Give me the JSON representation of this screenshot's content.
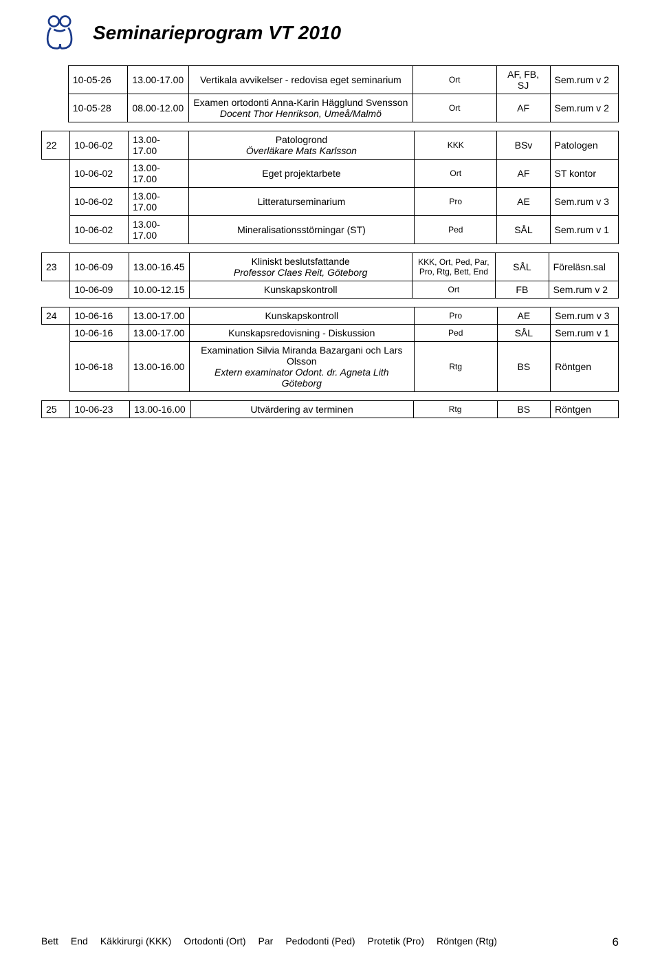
{
  "title": "Seminarieprogram VT 2010",
  "group0": [
    {
      "num": "",
      "date": "10-05-26",
      "time": "13.00-17.00",
      "desc": "Vertikala avvikelser - redovisa eget seminarium",
      "c1": "Ort",
      "c2": "AF, FB, SJ",
      "c3": "Sem.rum v 2"
    },
    {
      "num": "",
      "date": "10-05-28",
      "time": "08.00-12.00",
      "desc": "Examen ortodonti Anna-Karin Hägglund Svensson\n<span class='italic'>Docent Thor Henrikson, Umeå/Malmö</span>",
      "c1": "Ort",
      "c2": "AF",
      "c3": "Sem.rum v 2"
    }
  ],
  "group1": [
    {
      "num": "22",
      "date": "10-06-02",
      "time": "13.00-17.00",
      "desc": "Patologrond\n<span class='italic'>Överläkare Mats Karlsson</span>",
      "c1": "KKK",
      "c2": "BSv",
      "c3": "Patologen"
    },
    {
      "num": "",
      "date": "10-06-02",
      "time": "13.00-17.00",
      "desc": "Eget projektarbete",
      "c1": "Ort",
      "c2": "AF",
      "c3": "ST kontor"
    },
    {
      "num": "",
      "date": "10-06-02",
      "time": "13.00-17.00",
      "desc": "Litteraturseminarium",
      "c1": "Pro",
      "c2": "AE",
      "c3": "Sem.rum v 3"
    },
    {
      "num": "",
      "date": "10-06-02",
      "time": "13.00-17.00",
      "desc": "Mineralisationsstörningar (ST)",
      "c1": "Ped",
      "c2": "SÅL",
      "c3": "Sem.rum v 1"
    }
  ],
  "group2": [
    {
      "num": "23",
      "date": "10-06-09",
      "time": "13.00-16.45",
      "desc": "Kliniskt beslutsfattande\n<span class='italic'>Professor Claes Reit, Göteborg</span>",
      "c1": "KKK, Ort, Ped, Par, Pro, Rtg, Bett, End",
      "c2": "SÅL",
      "c3": "Föreläsn.sal"
    },
    {
      "num": "",
      "date": "10-06-09",
      "time": "10.00-12.15",
      "desc": "Kunskapskontroll",
      "c1": "Ort",
      "c2": "FB",
      "c3": "Sem.rum v 2"
    }
  ],
  "group3": [
    {
      "num": "24",
      "date": "10-06-16",
      "time": "13.00-17.00",
      "desc": "Kunskapskontroll",
      "c1": "Pro",
      "c2": "AE",
      "c3": "Sem.rum v 3"
    },
    {
      "num": "",
      "date": "10-06-16",
      "time": "13.00-17.00",
      "desc": "Kunskapsredovisning - Diskussion",
      "c1": "Ped",
      "c2": "SÅL",
      "c3": "Sem.rum v 1"
    },
    {
      "num": "",
      "date": "10-06-18",
      "time": "13.00-16.00",
      "desc": "Examination Silvia Miranda Bazargani och Lars Olsson\n<span class='italic'>Extern examinator Odont. dr. Agneta Lith Göteborg</span>",
      "c1": "Rtg",
      "c2": "BS",
      "c3": "Röntgen"
    }
  ],
  "group4": [
    {
      "num": "25",
      "date": "10-06-23",
      "time": "13.00-16.00",
      "desc": "Utvärdering av terminen",
      "c1": "Rtg",
      "c2": "BS",
      "c3": "Röntgen"
    }
  ],
  "footer": {
    "items": [
      "Bett",
      "End",
      "Käkkirurgi (KKK)",
      "Ortodonti (Ort)",
      "Par",
      "Pedodonti (Ped)",
      "Protetik (Pro)",
      "Röntgen (Rtg)"
    ],
    "pageNum": "6"
  }
}
